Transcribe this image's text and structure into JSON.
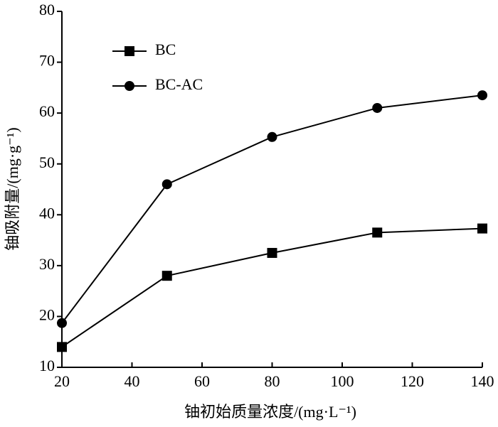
{
  "chart_data": {
    "type": "line",
    "x_label": "铀初始质量浓度/(mg·L⁻¹)",
    "y_label": "铀吸附量/(mg·g⁻¹)",
    "x": [
      20,
      50,
      80,
      110,
      140
    ],
    "series": [
      {
        "name": "BC",
        "color": "#000000",
        "marker": "square",
        "values": [
          14,
          28,
          32.5,
          36.5,
          37.3
        ]
      },
      {
        "name": "BC-AC",
        "color": "#000000",
        "marker": "circle",
        "values": [
          18.7,
          46,
          55.3,
          61,
          63.5
        ]
      }
    ],
    "xlim": [
      20,
      140
    ],
    "xticks": [
      20,
      40,
      60,
      80,
      100,
      120,
      140
    ],
    "ylim": [
      10,
      80
    ],
    "yticks": [
      10,
      20,
      30,
      40,
      50,
      60,
      70,
      80
    ],
    "legend": "upper-left"
  }
}
